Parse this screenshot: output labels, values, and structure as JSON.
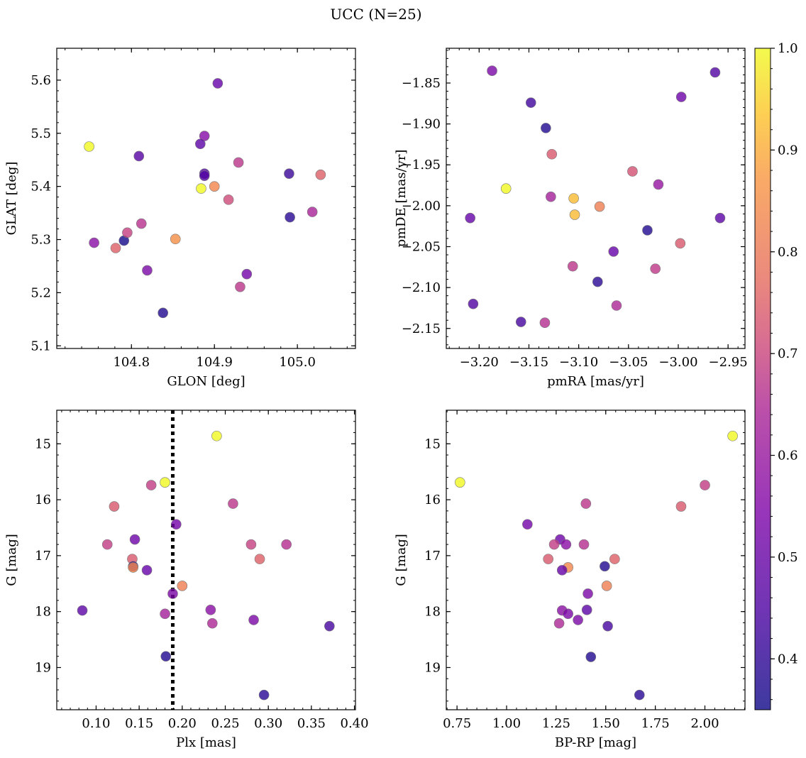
{
  "figure": {
    "title": "UCC (N=25)"
  },
  "colorbar": {
    "colormap": "plasma",
    "vmin": 0.35,
    "vmax": 1.0,
    "ticks": [
      0.4,
      0.5,
      0.6,
      0.7,
      0.8,
      0.9,
      1.0
    ],
    "tick_labels": [
      "0.4",
      "0.5",
      "0.6",
      "0.7",
      "0.8",
      "0.9",
      "1.0"
    ]
  },
  "chart_data": [
    {
      "type": "scatter",
      "title": "",
      "xlabel": "GLON [deg]",
      "ylabel": "GLAT [deg]",
      "xlim": [
        104.71,
        105.07
      ],
      "ylim": [
        5.095,
        5.66
      ],
      "y_inverted": false,
      "xticks": [
        104.8,
        104.9,
        105.0
      ],
      "xtick_labels": [
        "104.8",
        "104.9",
        "105.0"
      ],
      "yticks": [
        5.1,
        5.2,
        5.3,
        5.4,
        5.5,
        5.6
      ],
      "ytick_labels": [
        "5.1",
        "5.2",
        "5.3",
        "5.4",
        "5.5",
        "5.6"
      ],
      "color_by": "membership probability (colorbar)",
      "points": [
        {
          "x": 104.749,
          "y": 5.475,
          "c": 1.0
        },
        {
          "x": 104.809,
          "y": 5.457,
          "c": 0.47
        },
        {
          "x": 104.904,
          "y": 5.594,
          "c": 0.5
        },
        {
          "x": 104.888,
          "y": 5.495,
          "c": 0.57
        },
        {
          "x": 104.883,
          "y": 5.48,
          "c": 0.48
        },
        {
          "x": 104.888,
          "y": 5.424,
          "c": 0.46
        },
        {
          "x": 104.888,
          "y": 5.42,
          "c": 0.46
        },
        {
          "x": 104.929,
          "y": 5.445,
          "c": 0.7
        },
        {
          "x": 104.99,
          "y": 5.424,
          "c": 0.42
        },
        {
          "x": 105.028,
          "y": 5.422,
          "c": 0.82
        },
        {
          "x": 104.884,
          "y": 5.396,
          "c": 1.0
        },
        {
          "x": 104.9,
          "y": 5.4,
          "c": 0.92
        },
        {
          "x": 104.917,
          "y": 5.375,
          "c": 0.76
        },
        {
          "x": 104.991,
          "y": 5.342,
          "c": 0.39
        },
        {
          "x": 105.018,
          "y": 5.352,
          "c": 0.65
        },
        {
          "x": 104.755,
          "y": 5.294,
          "c": 0.58
        },
        {
          "x": 104.781,
          "y": 5.284,
          "c": 0.82
        },
        {
          "x": 104.791,
          "y": 5.298,
          "c": 0.36
        },
        {
          "x": 104.795,
          "y": 5.313,
          "c": 0.73
        },
        {
          "x": 104.812,
          "y": 5.33,
          "c": 0.69
        },
        {
          "x": 104.853,
          "y": 5.301,
          "c": 0.93
        },
        {
          "x": 104.819,
          "y": 5.242,
          "c": 0.55
        },
        {
          "x": 104.939,
          "y": 5.235,
          "c": 0.53
        },
        {
          "x": 104.931,
          "y": 5.211,
          "c": 0.7
        },
        {
          "x": 104.838,
          "y": 5.162,
          "c": 0.38
        }
      ]
    },
    {
      "type": "scatter",
      "title": "",
      "xlabel": "pmRA [mas/yr]",
      "ylabel": "pmDE [mas/yr]",
      "xlim": [
        -3.233,
        -2.933
      ],
      "ylim": [
        -2.1745,
        -1.8075
      ],
      "y_inverted": false,
      "xticks": [
        -3.2,
        -3.15,
        -3.1,
        -3.05,
        -3.0,
        -2.95
      ],
      "xtick_labels": [
        "−3.20",
        "−3.15",
        "−3.10",
        "−3.05",
        "−3.00",
        "−2.95"
      ],
      "yticks": [
        -2.15,
        -2.1,
        -2.05,
        -2.0,
        -1.95,
        -1.9,
        -1.85
      ],
      "ytick_labels": [
        "−2.15",
        "−2.10",
        "−2.05",
        "−2.00",
        "−1.95",
        "−1.90",
        "−1.85"
      ],
      "color_by": "membership probability (colorbar)",
      "points": [
        {
          "x": -3.187,
          "y": -1.835,
          "c": 0.55
        },
        {
          "x": -2.963,
          "y": -1.837,
          "c": 0.46
        },
        {
          "x": -3.148,
          "y": -1.874,
          "c": 0.43
        },
        {
          "x": -2.997,
          "y": -1.867,
          "c": 0.52
        },
        {
          "x": -3.133,
          "y": -1.905,
          "c": 0.38
        },
        {
          "x": -3.127,
          "y": -1.937,
          "c": 0.8
        },
        {
          "x": -3.046,
          "y": -1.958,
          "c": 0.78
        },
        {
          "x": -3.173,
          "y": -1.979,
          "c": 1.0
        },
        {
          "x": -3.02,
          "y": -1.974,
          "c": 0.61
        },
        {
          "x": -3.128,
          "y": -1.989,
          "c": 0.64
        },
        {
          "x": -3.105,
          "y": -1.991,
          "c": 0.97
        },
        {
          "x": -3.079,
          "y": -2.001,
          "c": 0.9
        },
        {
          "x": -3.104,
          "y": -2.011,
          "c": 0.97
        },
        {
          "x": -3.209,
          "y": -2.015,
          "c": 0.5
        },
        {
          "x": -2.958,
          "y": -2.015,
          "c": 0.48
        },
        {
          "x": -3.031,
          "y": -2.03,
          "c": 0.38
        },
        {
          "x": -2.998,
          "y": -2.046,
          "c": 0.8
        },
        {
          "x": -3.065,
          "y": -2.056,
          "c": 0.5
        },
        {
          "x": -3.106,
          "y": -2.074,
          "c": 0.7
        },
        {
          "x": -3.023,
          "y": -2.077,
          "c": 0.71
        },
        {
          "x": -3.081,
          "y": -2.093,
          "c": 0.39
        },
        {
          "x": -3.206,
          "y": -2.12,
          "c": 0.46
        },
        {
          "x": -3.062,
          "y": -2.122,
          "c": 0.66
        },
        {
          "x": -3.158,
          "y": -2.142,
          "c": 0.44
        },
        {
          "x": -3.134,
          "y": -2.143,
          "c": 0.68
        }
      ]
    },
    {
      "type": "scatter",
      "title": "",
      "xlabel": "Plx [mas]",
      "ylabel": "G [mag]",
      "xlim": [
        0.0543,
        0.4012
      ],
      "ylim": [
        19.755,
        14.4
      ],
      "y_inverted": true,
      "xticks": [
        0.1,
        0.15,
        0.2,
        0.25,
        0.3,
        0.35,
        0.4
      ],
      "xtick_labels": [
        "0.10",
        "0.15",
        "0.20",
        "0.25",
        "0.30",
        "0.35",
        "0.40"
      ],
      "yticks": [
        15,
        16,
        17,
        18,
        19
      ],
      "ytick_labels": [
        "15",
        "16",
        "17",
        "18",
        "19"
      ],
      "vline": {
        "x": 0.189,
        "style": "dotted"
      },
      "color_by": "membership probability (colorbar)",
      "points": [
        {
          "x": 0.24,
          "y": 14.86,
          "c": 1.0
        },
        {
          "x": 0.18,
          "y": 15.69,
          "c": 1.0
        },
        {
          "x": 0.164,
          "y": 15.74,
          "c": 0.72
        },
        {
          "x": 0.121,
          "y": 16.12,
          "c": 0.8
        },
        {
          "x": 0.259,
          "y": 16.07,
          "c": 0.7
        },
        {
          "x": 0.193,
          "y": 16.44,
          "c": 0.53
        },
        {
          "x": 0.145,
          "y": 16.71,
          "c": 0.52
        },
        {
          "x": 0.113,
          "y": 16.8,
          "c": 0.72
        },
        {
          "x": 0.28,
          "y": 16.8,
          "c": 0.73
        },
        {
          "x": 0.321,
          "y": 16.8,
          "c": 0.68
        },
        {
          "x": 0.142,
          "y": 17.06,
          "c": 0.8
        },
        {
          "x": 0.29,
          "y": 17.06,
          "c": 0.82
        },
        {
          "x": 0.143,
          "y": 17.19,
          "c": 0.38
        },
        {
          "x": 0.143,
          "y": 17.21,
          "c": 0.92
        },
        {
          "x": 0.159,
          "y": 17.26,
          "c": 0.5
        },
        {
          "x": 0.2,
          "y": 17.54,
          "c": 0.9
        },
        {
          "x": 0.189,
          "y": 17.68,
          "c": 0.55
        },
        {
          "x": 0.084,
          "y": 17.98,
          "c": 0.48
        },
        {
          "x": 0.233,
          "y": 17.97,
          "c": 0.58
        },
        {
          "x": 0.18,
          "y": 18.04,
          "c": 0.64
        },
        {
          "x": 0.283,
          "y": 18.15,
          "c": 0.55
        },
        {
          "x": 0.235,
          "y": 18.21,
          "c": 0.66
        },
        {
          "x": 0.371,
          "y": 18.26,
          "c": 0.44
        },
        {
          "x": 0.181,
          "y": 18.8,
          "c": 0.38
        },
        {
          "x": 0.295,
          "y": 19.49,
          "c": 0.39
        }
      ]
    },
    {
      "type": "scatter",
      "title": "",
      "xlabel": "BP-RP [mag]",
      "ylabel": "G [mag]",
      "xlim": [
        0.6959,
        2.2021
      ],
      "ylim": [
        19.755,
        14.4
      ],
      "y_inverted": true,
      "xticks": [
        0.75,
        1.0,
        1.25,
        1.5,
        1.75,
        2.0
      ],
      "xtick_labels": [
        "0.75",
        "1.00",
        "1.25",
        "1.50",
        "1.75",
        "2.00"
      ],
      "yticks": [
        15,
        16,
        17,
        18,
        19
      ],
      "ytick_labels": [
        "15",
        "16",
        "17",
        "18",
        "19"
      ],
      "color_by": "membership probability (colorbar)",
      "points": [
        {
          "x": 2.14,
          "y": 14.86,
          "c": 1.0
        },
        {
          "x": 0.765,
          "y": 15.69,
          "c": 1.0
        },
        {
          "x": 2.0,
          "y": 15.74,
          "c": 0.72
        },
        {
          "x": 1.88,
          "y": 16.12,
          "c": 0.8
        },
        {
          "x": 1.4,
          "y": 16.07,
          "c": 0.7
        },
        {
          "x": 1.105,
          "y": 16.44,
          "c": 0.53
        },
        {
          "x": 1.27,
          "y": 16.71,
          "c": 0.52
        },
        {
          "x": 1.24,
          "y": 16.8,
          "c": 0.72
        },
        {
          "x": 1.3,
          "y": 16.8,
          "c": 0.58
        },
        {
          "x": 1.39,
          "y": 16.8,
          "c": 0.68
        },
        {
          "x": 1.21,
          "y": 17.06,
          "c": 0.8
        },
        {
          "x": 1.545,
          "y": 17.06,
          "c": 0.82
        },
        {
          "x": 1.495,
          "y": 17.19,
          "c": 0.38
        },
        {
          "x": 1.31,
          "y": 17.21,
          "c": 0.92
        },
        {
          "x": 1.28,
          "y": 17.26,
          "c": 0.5
        },
        {
          "x": 1.505,
          "y": 17.54,
          "c": 0.9
        },
        {
          "x": 1.41,
          "y": 17.68,
          "c": 0.55
        },
        {
          "x": 1.405,
          "y": 17.97,
          "c": 0.48
        },
        {
          "x": 1.28,
          "y": 17.98,
          "c": 0.58
        },
        {
          "x": 1.31,
          "y": 18.04,
          "c": 0.55
        },
        {
          "x": 1.36,
          "y": 18.15,
          "c": 0.55
        },
        {
          "x": 1.265,
          "y": 18.21,
          "c": 0.66
        },
        {
          "x": 1.51,
          "y": 18.26,
          "c": 0.44
        },
        {
          "x": 1.425,
          "y": 18.81,
          "c": 0.38
        },
        {
          "x": 1.67,
          "y": 19.49,
          "c": 0.39
        }
      ]
    }
  ]
}
